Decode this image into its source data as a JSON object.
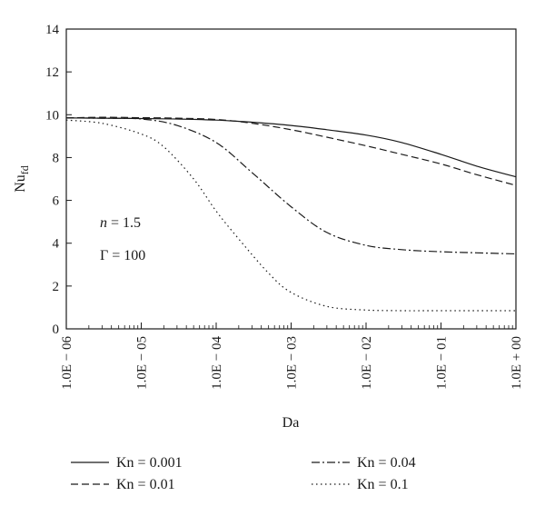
{
  "chart_data": {
    "type": "line",
    "xscale": "log",
    "x": [
      1e-06,
      1e-05,
      0.0001,
      0.001,
      0.01,
      0.1,
      1
    ],
    "x_tick_labels": [
      "1.0E − 06",
      "1.0E − 05",
      "1.0E − 04",
      "1.0E − 03",
      "1.0E − 02",
      "1.0E − 01",
      "1.0E + 00"
    ],
    "xlabel": "Da",
    "ylabel": "Nu",
    "ylabel_sub": "fd",
    "ylim": [
      0,
      14
    ],
    "yticks": [
      0,
      2,
      4,
      6,
      8,
      10,
      12,
      14
    ],
    "grid": false,
    "annotations": [
      {
        "var": "n",
        "text": " = 1.5"
      },
      {
        "var": "Γ",
        "text": " = 100"
      }
    ],
    "legend_position": "bottom",
    "series": [
      {
        "name": "Kn = 0.001",
        "style": "solid",
        "points": [
          [
            1e-06,
            9.85
          ],
          [
            3e-06,
            9.84
          ],
          [
            1e-05,
            9.82
          ],
          [
            3e-05,
            9.8
          ],
          [
            0.0001,
            9.75
          ],
          [
            0.0003,
            9.65
          ],
          [
            0.001,
            9.5
          ],
          [
            0.003,
            9.3
          ],
          [
            0.01,
            9.05
          ],
          [
            0.03,
            8.7
          ],
          [
            0.1,
            8.15
          ],
          [
            0.3,
            7.6
          ],
          [
            1,
            7.1
          ]
        ]
      },
      {
        "name": "Kn = 0.01",
        "style": "dashed",
        "points": [
          [
            1e-06,
            9.85
          ],
          [
            3e-06,
            9.88
          ],
          [
            1e-05,
            9.86
          ],
          [
            3e-05,
            9.84
          ],
          [
            0.0001,
            9.78
          ],
          [
            0.0003,
            9.6
          ],
          [
            0.001,
            9.3
          ],
          [
            0.003,
            8.95
          ],
          [
            0.01,
            8.55
          ],
          [
            0.03,
            8.15
          ],
          [
            0.1,
            7.7
          ],
          [
            0.3,
            7.2
          ],
          [
            1,
            6.7
          ]
        ]
      },
      {
        "name": "Kn = 0.04",
        "style": "dashdot",
        "points": [
          [
            1e-06,
            9.85
          ],
          [
            3e-06,
            9.84
          ],
          [
            1e-05,
            9.8
          ],
          [
            3e-05,
            9.5
          ],
          [
            0.0001,
            8.7
          ],
          [
            0.0003,
            7.3
          ],
          [
            0.001,
            5.7
          ],
          [
            0.003,
            4.5
          ],
          [
            0.01,
            3.9
          ],
          [
            0.03,
            3.7
          ],
          [
            0.1,
            3.6
          ],
          [
            0.3,
            3.55
          ],
          [
            1,
            3.5
          ]
        ]
      },
      {
        "name": "Kn = 0.1",
        "style": "dotted",
        "points": [
          [
            1e-06,
            9.75
          ],
          [
            3e-06,
            9.6
          ],
          [
            1e-05,
            9.1
          ],
          [
            2e-05,
            8.5
          ],
          [
            5e-05,
            7.0
          ],
          [
            0.0001,
            5.5
          ],
          [
            0.0002,
            4.2
          ],
          [
            0.0005,
            2.6
          ],
          [
            0.001,
            1.7
          ],
          [
            0.003,
            1.05
          ],
          [
            0.01,
            0.88
          ],
          [
            0.03,
            0.85
          ],
          [
            0.1,
            0.85
          ],
          [
            1,
            0.85
          ]
        ]
      }
    ]
  }
}
